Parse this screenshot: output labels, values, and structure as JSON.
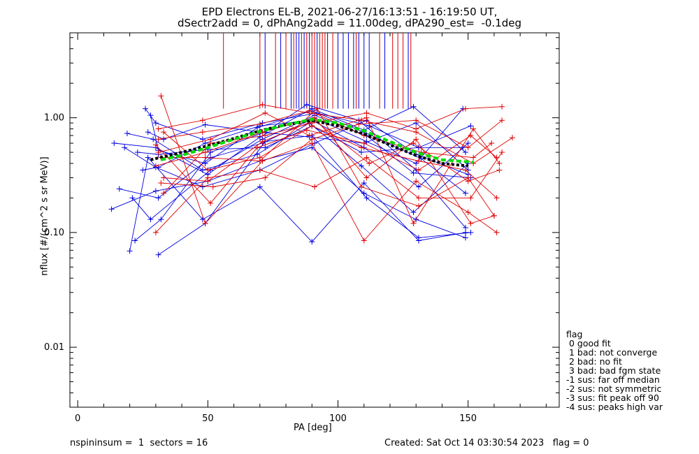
{
  "header": {
    "title_line1": "EPD Electrons EL-B, 2021-06-27/16:13:51 - 16:19:50 UT,",
    "title_line2": "dSectr2add = 0, dPhAng2add = 11.00deg, dPA290_est=  -0.1deg"
  },
  "footer": {
    "left": "nspininsum =  1  sectors = 16",
    "right": "Created: Sat Oct 14 03:30:54 2023   flag = 0"
  },
  "legend": {
    "title": "flag",
    "items": [
      " 0 good fit",
      " 1 bad: not converge",
      " 2 bad: no fit",
      " 3 bad: bad fgm state",
      "-1 sus: far off median",
      "-2 sus: not symmetric",
      "-3 sus: fit peak off 90",
      "-4 sus: peaks high var"
    ]
  },
  "chart_data": {
    "type": "line",
    "xlabel": "PA [deg]",
    "ylabel": "nflux [#/(cm^2 s sr MeV)]",
    "xlim": [
      -3,
      185
    ],
    "ylim": [
      0.003,
      5.5
    ],
    "ylog": true,
    "x_ticks": [
      0,
      50,
      100,
      150
    ],
    "x_tick_labels": [
      "0",
      "50",
      "100",
      "150"
    ],
    "y_ticks": [
      0.01,
      0.1,
      1.0
    ],
    "y_tick_labels": [
      "0.01",
      "0.10",
      "1.00"
    ],
    "colors": {
      "red": "#e00000",
      "blue": "#0000e0",
      "median": "#000000",
      "fit": "#00dd00"
    },
    "series": [
      {
        "color": "blue",
        "x": [
          20,
          27,
          48,
          70,
          90,
          110,
          131,
          149
        ],
        "y": [
          0.069,
          0.45,
          0.13,
          0.25,
          0.083,
          0.27,
          0.085,
          0.1
        ]
      },
      {
        "color": "blue",
        "x": [
          31,
          49,
          72,
          90,
          111,
          131,
          151
        ],
        "y": [
          0.064,
          0.12,
          0.62,
          0.7,
          0.2,
          0.09,
          0.1
        ]
      },
      {
        "color": "blue",
        "x": [
          14,
          30,
          50,
          70,
          90,
          110,
          129,
          149
        ],
        "y": [
          0.6,
          0.55,
          0.32,
          0.68,
          1.2,
          0.78,
          1.25,
          0.5
        ]
      },
      {
        "color": "blue",
        "x": [
          16,
          31,
          51,
          71,
          91,
          111,
          130,
          148
        ],
        "y": [
          0.24,
          0.2,
          0.45,
          0.6,
          1.0,
          0.62,
          0.4,
          1.2
        ]
      },
      {
        "color": "blue",
        "x": [
          19,
          29,
          48,
          69,
          89,
          109,
          129,
          150
        ],
        "y": [
          0.73,
          0.65,
          0.35,
          0.48,
          0.9,
          0.38,
          0.15,
          0.4
        ]
      },
      {
        "color": "blue",
        "x": [
          22,
          32,
          51,
          72,
          88,
          108,
          130,
          149
        ],
        "y": [
          0.085,
          0.13,
          0.5,
          0.75,
          1.3,
          0.95,
          0.35,
          0.11
        ]
      },
      {
        "color": "blue",
        "x": [
          25,
          31,
          49,
          70,
          90,
          110,
          131,
          150
        ],
        "y": [
          0.35,
          0.37,
          0.6,
          0.85,
          0.95,
          0.55,
          0.25,
          0.6
        ]
      },
      {
        "color": "blue",
        "x": [
          26,
          30,
          48,
          71,
          92,
          112,
          131,
          151
        ],
        "y": [
          1.2,
          0.9,
          0.65,
          0.9,
          1.1,
          0.85,
          0.55,
          0.85
        ]
      },
      {
        "color": "blue",
        "x": [
          13,
          30,
          50,
          70,
          90,
          110,
          130,
          149
        ],
        "y": [
          0.16,
          0.23,
          0.28,
          0.42,
          0.55,
          0.22,
          0.13,
          0.09
        ]
      },
      {
        "color": "blue",
        "x": [
          21,
          28,
          51,
          71,
          91,
          111,
          129,
          151
        ],
        "y": [
          0.2,
          0.13,
          0.35,
          0.65,
          1.05,
          0.7,
          0.33,
          0.3
        ]
      },
      {
        "color": "blue",
        "x": [
          27,
          33,
          49,
          70,
          89,
          110,
          130,
          150
        ],
        "y": [
          0.75,
          0.65,
          0.87,
          0.75,
          0.68,
          0.6,
          0.9,
          0.35
        ]
      },
      {
        "color": "blue",
        "x": [
          23,
          31,
          50,
          72,
          90,
          109,
          131,
          148
        ],
        "y": [
          0.5,
          0.48,
          0.53,
          0.55,
          0.85,
          0.5,
          0.55,
          0.55
        ]
      },
      {
        "color": "blue",
        "x": [
          18,
          30,
          48,
          70,
          91,
          111,
          130,
          150
        ],
        "y": [
          0.55,
          0.37,
          0.25,
          0.35,
          0.6,
          0.95,
          0.48,
          0.32
        ]
      },
      {
        "color": "blue",
        "x": [
          28,
          31,
          49,
          69,
          90,
          110,
          132,
          149
        ],
        "y": [
          1.05,
          0.52,
          0.4,
          0.82,
          1.15,
          0.75,
          0.44,
          0.22
        ]
      },
      {
        "color": "red",
        "x": [
          32,
          49,
          71,
          90,
          110,
          130,
          150,
          161
        ],
        "y": [
          1.55,
          0.12,
          0.42,
          0.6,
          0.085,
          0.28,
          0.15,
          0.1
        ]
      },
      {
        "color": "red",
        "x": [
          30,
          50,
          70,
          91,
          111,
          131,
          151,
          163
        ],
        "y": [
          0.1,
          0.3,
          0.35,
          0.25,
          0.45,
          0.2,
          0.2,
          0.5
        ]
      },
      {
        "color": "red",
        "x": [
          31,
          48,
          71,
          89,
          109,
          130,
          152,
          167
        ],
        "y": [
          0.8,
          0.95,
          1.3,
          1.1,
          0.95,
          0.75,
          0.4,
          0.67
        ]
      },
      {
        "color": "red",
        "x": [
          33,
          51,
          72,
          90,
          111,
          130,
          149,
          163
        ],
        "y": [
          0.22,
          0.6,
          0.7,
          0.9,
          1.1,
          0.8,
          1.2,
          1.25
        ]
      },
      {
        "color": "red",
        "x": [
          32,
          49,
          70,
          92,
          109,
          131,
          150,
          160
        ],
        "y": [
          0.45,
          0.45,
          0.42,
          1.2,
          0.25,
          0.17,
          0.3,
          0.14
        ]
      },
      {
        "color": "red",
        "x": [
          30,
          51,
          69,
          88,
          110,
          131,
          151,
          161
        ],
        "y": [
          0.58,
          0.18,
          0.55,
          0.78,
          0.6,
          0.35,
          0.7,
          0.45
        ]
      },
      {
        "color": "red",
        "x": [
          33,
          50,
          71,
          91,
          112,
          129,
          150,
          162
        ],
        "y": [
          0.3,
          0.28,
          0.62,
          0.95,
          0.4,
          0.6,
          0.28,
          0.35
        ]
      },
      {
        "color": "red",
        "x": [
          31,
          48,
          70,
          89,
          110,
          132,
          152,
          159
        ],
        "y": [
          0.65,
          0.75,
          0.88,
          1.15,
          0.7,
          0.5,
          0.45,
          0.6
        ]
      },
      {
        "color": "red",
        "x": [
          32,
          52,
          72,
          90,
          108,
          130,
          150,
          163
        ],
        "y": [
          0.27,
          0.25,
          0.3,
          0.65,
          0.88,
          0.95,
          0.55,
          0.95
        ]
      },
      {
        "color": "red",
        "x": [
          30,
          49,
          71,
          91,
          111,
          130,
          151,
          160
        ],
        "y": [
          0.38,
          0.5,
          0.75,
          1.0,
          0.3,
          0.65,
          0.12,
          0.14
        ]
      },
      {
        "color": "red",
        "x": [
          33,
          50,
          70,
          90,
          109,
          131,
          149,
          161
        ],
        "y": [
          0.75,
          0.35,
          0.45,
          0.85,
          0.55,
          0.42,
          0.35,
          0.2
        ]
      },
      {
        "color": "red",
        "x": [
          31,
          51,
          72,
          89,
          111,
          129,
          152,
          162
        ],
        "y": [
          0.5,
          0.65,
          1.1,
          0.7,
          1.0,
          0.12,
          0.8,
          0.4
        ]
      }
    ],
    "median": {
      "x": [
        28,
        40,
        50,
        60,
        70,
        80,
        90,
        100,
        110,
        120,
        130,
        140,
        150
      ],
      "y": [
        0.43,
        0.5,
        0.57,
        0.66,
        0.77,
        0.87,
        0.95,
        0.85,
        0.72,
        0.58,
        0.47,
        0.4,
        0.38
      ]
    },
    "fit": {
      "x": [
        32,
        40,
        50,
        60,
        70,
        80,
        90,
        100,
        110,
        120,
        130,
        140,
        152
      ],
      "y": [
        0.43,
        0.47,
        0.55,
        0.65,
        0.76,
        0.87,
        0.97,
        0.9,
        0.77,
        0.62,
        0.5,
        0.43,
        0.41
      ]
    },
    "spikes": [
      {
        "x": 56,
        "color": "red"
      },
      {
        "x": 70,
        "color": "red"
      },
      {
        "x": 72,
        "color": "blue"
      },
      {
        "x": 76,
        "color": "red"
      },
      {
        "x": 78,
        "color": "blue"
      },
      {
        "x": 80,
        "color": "red"
      },
      {
        "x": 82,
        "color": "blue"
      },
      {
        "x": 83,
        "color": "red"
      },
      {
        "x": 84,
        "color": "blue"
      },
      {
        "x": 85,
        "color": "blue"
      },
      {
        "x": 86,
        "color": "red"
      },
      {
        "x": 87,
        "color": "blue"
      },
      {
        "x": 88,
        "color": "red"
      },
      {
        "x": 89,
        "color": "blue"
      },
      {
        "x": 90,
        "color": "red"
      },
      {
        "x": 91,
        "color": "red"
      },
      {
        "x": 92,
        "color": "blue"
      },
      {
        "x": 93,
        "color": "red"
      },
      {
        "x": 94,
        "color": "red"
      },
      {
        "x": 95,
        "color": "red"
      },
      {
        "x": 96,
        "color": "blue"
      },
      {
        "x": 98,
        "color": "red"
      },
      {
        "x": 100,
        "color": "blue"
      },
      {
        "x": 102,
        "color": "blue"
      },
      {
        "x": 104,
        "color": "blue"
      },
      {
        "x": 106,
        "color": "blue"
      },
      {
        "x": 107,
        "color": "red"
      },
      {
        "x": 108,
        "color": "blue"
      },
      {
        "x": 110,
        "color": "blue"
      },
      {
        "x": 112,
        "color": "blue"
      },
      {
        "x": 116,
        "color": "red"
      },
      {
        "x": 118,
        "color": "blue"
      },
      {
        "x": 121,
        "color": "red"
      },
      {
        "x": 123,
        "color": "red"
      },
      {
        "x": 125,
        "color": "red"
      },
      {
        "x": 127,
        "color": "blue"
      },
      {
        "x": 128,
        "color": "red"
      }
    ]
  }
}
